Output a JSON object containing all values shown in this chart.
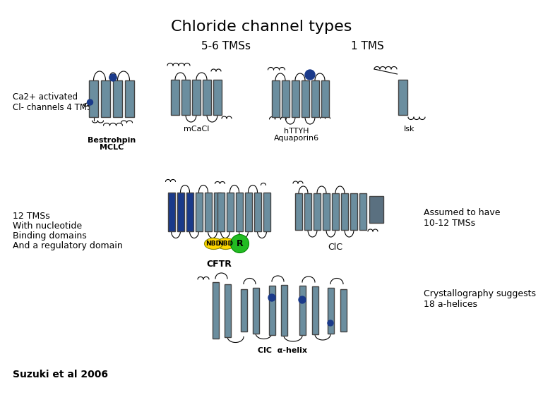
{
  "title": "Chloride channel types",
  "bg_color": "#ffffff",
  "title_fontsize": 16,
  "label_56tms": "5-6 TMSs",
  "label_1tms": "1 TMS",
  "label_ca2": "Ca2+ activated\nCl- channels 4 TMSs",
  "label_bestrohpin": "Bestrohpin",
  "label_mclc": "MCLC",
  "label_mcacl": "mCaCl",
  "label_httyh": "hTTYH",
  "label_aquaporin": "Aquaporin6",
  "label_isk": "Isk",
  "label_12tms_line1": "12 TMSs",
  "label_12tms_line2": "With nucleotide",
  "label_12tms_line3": "Binding domains",
  "label_12tms_line4": "And a regulatory domain",
  "label_cftr": "CFTR",
  "label_clc": "ClC",
  "label_assumed": "Assumed to have\n10-12 TMSs",
  "label_crystal": "Crystallography suggests\n18 a-helices",
  "label_clchelix": "ClC  α-helix",
  "label_suzuki": "Suzuki et al 2006",
  "tms_color": "#6B8E9F",
  "blue_color": "#1a3a8a",
  "yellow_color": "#FFD700",
  "green_color": "#22BB22",
  "dark_tms_color": "#5a7080"
}
